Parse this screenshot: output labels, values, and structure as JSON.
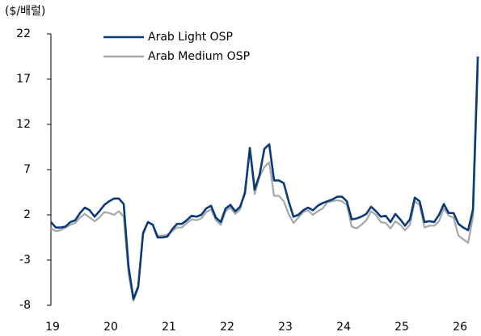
{
  "chart_data": {
    "type": "line",
    "y_unit_label": "($/배럴)",
    "x": [
      19,
      19.083,
      19.167,
      19.25,
      19.333,
      19.417,
      19.5,
      19.583,
      19.667,
      19.75,
      19.833,
      19.917,
      20,
      20.083,
      20.167,
      20.25,
      20.333,
      20.417,
      20.5,
      20.583,
      20.667,
      20.75,
      20.833,
      20.917,
      21,
      21.083,
      21.167,
      21.25,
      21.333,
      21.417,
      21.5,
      21.583,
      21.667,
      21.75,
      21.833,
      21.917,
      22,
      22.083,
      22.167,
      22.25,
      22.333,
      22.417,
      22.5,
      22.583,
      22.667,
      22.75,
      22.833,
      22.917,
      23,
      23.083,
      23.167,
      23.25,
      23.333,
      23.417,
      23.5,
      23.583,
      23.667,
      23.75,
      23.833,
      23.917,
      24,
      24.083,
      24.167,
      24.25,
      24.333,
      24.417,
      24.5,
      24.583,
      24.667,
      24.75,
      24.833,
      24.917,
      25,
      25.083,
      25.167,
      25.25,
      25.333,
      25.417,
      25.5,
      25.583,
      25.667,
      25.75,
      25.833,
      25.917,
      26,
      26.083,
      26.167,
      26.25,
      26.333
    ],
    "series": [
      {
        "name": "Arab Light OSP",
        "color": "#0b3a78",
        "values": [
          1.2,
          0.6,
          0.6,
          0.7,
          1.2,
          1.4,
          2.2,
          2.8,
          2.5,
          1.8,
          2.4,
          3.1,
          3.5,
          3.8,
          3.8,
          3.2,
          -3.7,
          -7.3,
          -5.9,
          0.0,
          1.2,
          0.9,
          -0.5,
          -0.5,
          -0.4,
          0.4,
          1.0,
          1.0,
          1.4,
          1.9,
          1.8,
          2.0,
          2.7,
          3.0,
          1.7,
          1.2,
          2.7,
          3.1,
          2.4,
          2.9,
          4.4,
          9.4,
          4.8,
          6.4,
          9.3,
          9.8,
          5.8,
          5.8,
          5.5,
          3.5,
          1.8,
          2.0,
          2.5,
          2.8,
          2.5,
          3.0,
          3.3,
          3.5,
          3.7,
          4.0,
          4.0,
          3.5,
          1.5,
          1.6,
          1.8,
          2.1,
          2.9,
          2.4,
          1.8,
          1.9,
          1.2,
          2.1,
          1.5,
          0.8,
          1.5,
          3.9,
          3.5,
          1.2,
          1.3,
          1.2,
          2.0,
          3.2,
          2.2,
          2.2,
          1.0,
          0.6,
          0.3,
          2.6,
          19.5
        ]
      },
      {
        "name": "Arab Medium OSP",
        "color": "#a6a6a6",
        "values": [
          0.5,
          0.2,
          0.3,
          0.6,
          0.9,
          1.1,
          1.7,
          2.1,
          1.7,
          1.3,
          1.7,
          2.3,
          2.2,
          2.0,
          2.4,
          1.8,
          -4.5,
          -7.5,
          -6.1,
          -0.2,
          1.2,
          0.9,
          -0.3,
          -0.3,
          -0.2,
          0.2,
          0.6,
          0.6,
          1.1,
          1.5,
          1.4,
          1.6,
          2.3,
          2.6,
          1.4,
          0.9,
          2.4,
          2.8,
          2.1,
          2.6,
          4.7,
          9.2,
          4.3,
          6.2,
          7.3,
          7.8,
          4.1,
          4.1,
          3.5,
          2.1,
          1.1,
          1.7,
          2.3,
          2.5,
          2.0,
          2.4,
          2.7,
          3.4,
          3.5,
          3.6,
          3.5,
          3.1,
          0.7,
          0.5,
          0.9,
          1.4,
          2.4,
          2.0,
          1.2,
          1.1,
          0.5,
          1.3,
          0.9,
          0.3,
          0.9,
          3.5,
          3.1,
          0.6,
          0.8,
          0.8,
          1.3,
          2.7,
          1.9,
          1.7,
          -0.3,
          -0.7,
          -1.1,
          1.8,
          18.0
        ]
      }
    ],
    "xlim": [
      19,
      26.36
    ],
    "xticks": [
      19,
      20,
      21,
      22,
      23,
      24,
      25,
      26
    ],
    "ylim": [
      -8,
      22
    ],
    "yticks": [
      -8,
      -3,
      2,
      7,
      12,
      17,
      22
    ],
    "legend": "upper left"
  }
}
